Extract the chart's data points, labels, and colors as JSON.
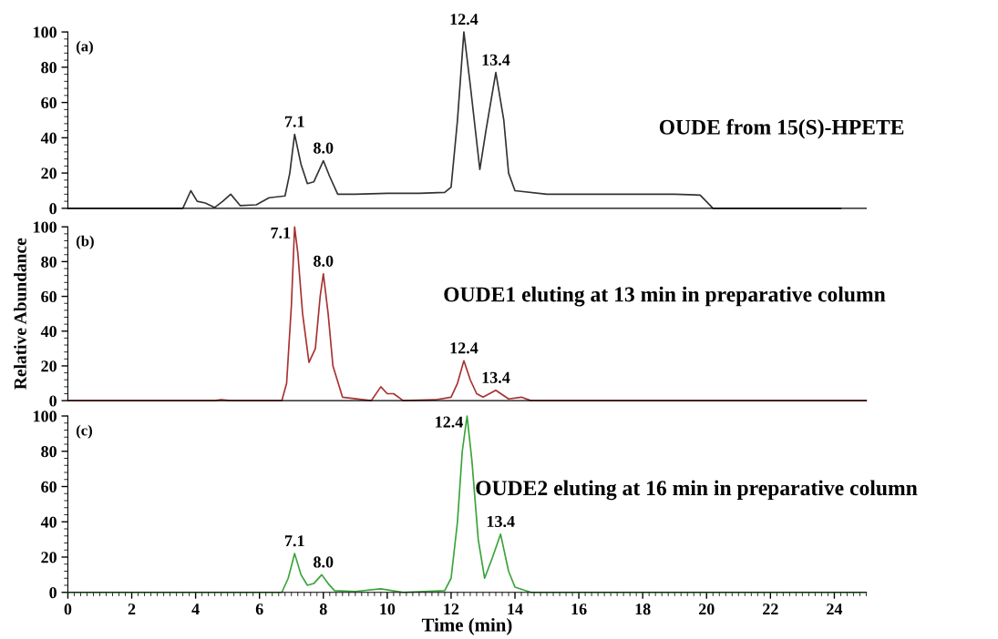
{
  "chart_data": [
    {
      "type": "line",
      "xlim": [
        0,
        25
      ],
      "ylim": [
        0,
        100
      ],
      "yticks": [
        0,
        20,
        40,
        60,
        80,
        100
      ],
      "tick_labels": "y",
      "grid": false,
      "legend": false,
      "annotations": [
        "(a)",
        "OUDE from 15(S)-HPETE",
        {
          "text": "7.1",
          "x": 7.1,
          "y": 42
        },
        {
          "text": "8.0",
          "x": 8.0,
          "y": 27
        },
        {
          "text": "12.4",
          "x": 12.4,
          "y": 100
        },
        {
          "text": "13.4",
          "x": 13.4,
          "y": 77
        }
      ],
      "series": [
        {
          "color": "#333333",
          "x": [
            0,
            3.6,
            3.85,
            4.05,
            4.3,
            4.6,
            4.85,
            5.1,
            5.4,
            5.9,
            6.3,
            6.8,
            6.95,
            7.1,
            7.3,
            7.5,
            7.7,
            8.0,
            8.2,
            8.45,
            8.7,
            9.0,
            10.0,
            11.0,
            11.8,
            12.0,
            12.2,
            12.4,
            12.6,
            12.9,
            13.1,
            13.4,
            13.65,
            13.8,
            14.0,
            15.0,
            17.0,
            19.0,
            19.8,
            20.2,
            24.2
          ],
          "values": [
            0,
            0,
            10,
            4,
            3,
            0.5,
            4,
            8,
            1.5,
            2,
            6,
            7,
            20,
            42,
            25,
            14,
            15,
            27,
            18,
            8,
            8,
            8,
            8.5,
            8.5,
            9,
            12,
            50,
            100,
            70,
            22,
            45,
            77,
            50,
            20,
            10,
            8,
            8,
            8,
            7.5,
            0,
            0
          ]
        }
      ]
    },
    {
      "type": "line",
      "xlim": [
        0,
        25
      ],
      "ylim": [
        0,
        100
      ],
      "yticks": [
        0,
        20,
        40,
        60,
        80,
        100
      ],
      "tick_labels": "y",
      "grid": false,
      "legend": false,
      "ylabel": "Relative Abundance",
      "annotations": [
        "(b)",
        "OUDE1 eluting at 13 min in preparative column",
        {
          "text": "7.1",
          "x": 7.1,
          "y": 100
        },
        {
          "text": "8.0",
          "x": 8.0,
          "y": 73
        },
        {
          "text": "12.4",
          "x": 12.4,
          "y": 23
        },
        {
          "text": "13.4",
          "x": 13.4,
          "y": 6
        }
      ],
      "series": [
        {
          "color": "#a83232",
          "x": [
            0,
            4.6,
            4.8,
            5.1,
            6.7,
            6.85,
            7.0,
            7.1,
            7.2,
            7.35,
            7.55,
            7.75,
            7.9,
            8.0,
            8.15,
            8.3,
            8.6,
            9.5,
            9.8,
            10.0,
            10.2,
            10.5,
            11.5,
            12.0,
            12.2,
            12.4,
            12.6,
            12.8,
            13.0,
            13.4,
            13.8,
            14.2,
            14.5,
            25
          ],
          "values": [
            0,
            0,
            0.5,
            0,
            0,
            10,
            55,
            100,
            85,
            50,
            22,
            30,
            60,
            73,
            50,
            20,
            2,
            0,
            8,
            4,
            4,
            0,
            0.5,
            2,
            10,
            23,
            12,
            4,
            2,
            6,
            1,
            2,
            0,
            0
          ]
        }
      ]
    },
    {
      "type": "line",
      "xlim": [
        0,
        25
      ],
      "ylim": [
        0,
        100
      ],
      "yticks": [
        0,
        20,
        40,
        60,
        80,
        100
      ],
      "xticks": [
        0,
        2,
        4,
        6,
        8,
        10,
        12,
        14,
        16,
        18,
        20,
        22,
        24
      ],
      "grid": false,
      "legend": false,
      "xlabel": "Time (min)",
      "annotations": [
        "(c)",
        "OUDE2 eluting at 16 min in preparative column",
        {
          "text": "7.1",
          "x": 7.1,
          "y": 22
        },
        {
          "text": "8.0",
          "x": 8.0,
          "y": 10
        },
        {
          "text": "12.4",
          "x": 12.5,
          "y": 100
        },
        {
          "text": "13.4",
          "x": 13.55,
          "y": 33
        }
      ],
      "series": [
        {
          "color": "#3aa33a",
          "x": [
            0,
            6.7,
            6.9,
            7.1,
            7.3,
            7.5,
            7.7,
            7.95,
            8.15,
            8.35,
            9.0,
            9.8,
            10.5,
            11.8,
            12.0,
            12.2,
            12.35,
            12.5,
            12.65,
            12.85,
            13.05,
            13.3,
            13.55,
            13.8,
            14.0,
            14.5,
            25
          ],
          "values": [
            0,
            0,
            8,
            22,
            10,
            4,
            5,
            10,
            5,
            1,
            0.5,
            2,
            0,
            1,
            8,
            40,
            80,
            100,
            75,
            30,
            8,
            20,
            33,
            12,
            3,
            0,
            0
          ]
        }
      ]
    }
  ]
}
